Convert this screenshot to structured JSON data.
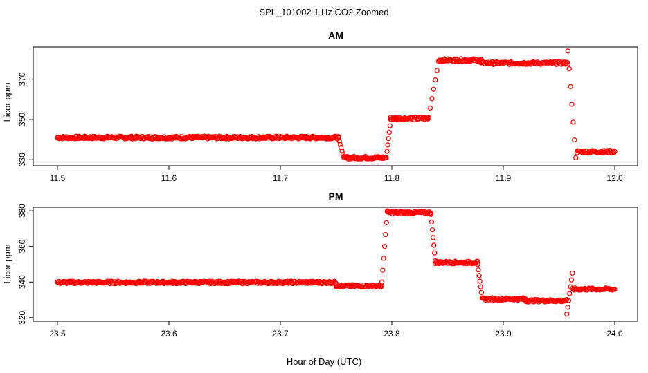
{
  "figure": {
    "title": "SPL_101002  1 Hz CO2 Zoomed",
    "xlabel": "Hour of Day (UTC)"
  },
  "colors": {
    "points": "#ff0000",
    "axis": "#000000",
    "background": "#ffffff"
  },
  "chart_data": [
    {
      "type": "scatter",
      "title": "AM",
      "ylabel": "Licor ppm",
      "xlim": [
        11.5,
        12.0
      ],
      "ylim": [
        327,
        386
      ],
      "xticks": [
        11.5,
        11.6,
        11.7,
        11.8,
        11.9,
        12.0
      ],
      "xtick_labels": [
        "11.5",
        "11.6",
        "11.7",
        "11.8",
        "11.9",
        "12.0"
      ],
      "yticks": [
        330,
        350,
        370
      ],
      "ytick_labels": [
        "330",
        "350",
        "370"
      ],
      "grid": false,
      "marker": "open-circle",
      "segments": [
        {
          "x": [
            11.5,
            11.752
          ],
          "y": 341
        },
        {
          "x": [
            11.757,
            11.795
          ],
          "y": 331
        },
        {
          "x": [
            11.799,
            11.833
          ],
          "y": 350.5
        },
        {
          "x": [
            11.842,
            11.88
          ],
          "y": 379.5
        },
        {
          "x": [
            11.88,
            11.958
          ],
          "y": 378
        }
      ],
      "transitions": [
        {
          "x": [
            11.752,
            11.757
          ],
          "y": [
            341,
            331
          ]
        },
        {
          "x": [
            11.795,
            11.799
          ],
          "y": [
            331,
            350
          ]
        },
        {
          "x": [
            11.833,
            11.842
          ],
          "y": [
            351,
            379
          ]
        },
        {
          "x": [
            11.958,
            11.965
          ],
          "y": [
            384,
            331
          ]
        }
      ],
      "tail": {
        "x": [
          11.966,
          12.0
        ],
        "y": 334
      }
    },
    {
      "type": "scatter",
      "title": "PM",
      "ylabel": "Licor ppm",
      "xlim": [
        23.5,
        24.0
      ],
      "ylim": [
        318,
        382
      ],
      "xticks": [
        23.5,
        23.6,
        23.7,
        23.8,
        23.9,
        24.0
      ],
      "xtick_labels": [
        "23.5",
        "23.6",
        "23.7",
        "23.8",
        "23.9",
        "24.0"
      ],
      "yticks": [
        320,
        340,
        360,
        380
      ],
      "ytick_labels": [
        "320",
        "340",
        "360",
        "380"
      ],
      "grid": false,
      "marker": "open-circle",
      "segments": [
        {
          "x": [
            23.5,
            23.75
          ],
          "y": 339.8
        },
        {
          "x": [
            23.75,
            23.791
          ],
          "y": 337.8
        },
        {
          "x": [
            23.796,
            23.835
          ],
          "y": 379
        },
        {
          "x": [
            23.839,
            23.877
          ],
          "y": 351
        },
        {
          "x": [
            23.881,
            23.92
          ],
          "y": 330.5
        },
        {
          "x": [
            23.92,
            23.957
          ],
          "y": 329.5
        },
        {
          "x": [
            23.962,
            24.0
          ],
          "y": 336
        }
      ],
      "transitions": [
        {
          "x": [
            23.791,
            23.796
          ],
          "y": [
            340,
            380
          ]
        },
        {
          "x": [
            23.835,
            23.839
          ],
          "y": [
            378,
            352
          ]
        },
        {
          "x": [
            23.877,
            23.881
          ],
          "y": [
            350,
            331
          ]
        },
        {
          "x": [
            23.957,
            23.962
          ],
          "y": [
            322,
            345
          ]
        }
      ]
    }
  ]
}
